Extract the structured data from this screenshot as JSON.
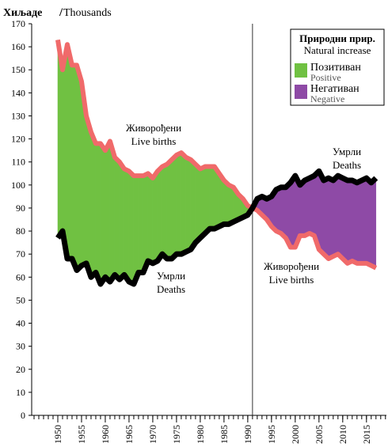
{
  "chart_data": {
    "type": "line",
    "y_label": "Хиљаде",
    "y_label_en": "Thousands",
    "x": [
      1950,
      1951,
      1952,
      1953,
      1954,
      1955,
      1956,
      1957,
      1958,
      1959,
      1960,
      1961,
      1962,
      1963,
      1964,
      1965,
      1966,
      1967,
      1968,
      1969,
      1970,
      1971,
      1972,
      1973,
      1974,
      1975,
      1976,
      1977,
      1978,
      1979,
      1980,
      1981,
      1982,
      1983,
      1984,
      1985,
      1986,
      1987,
      1988,
      1989,
      1990,
      1991,
      1992,
      1993,
      1994,
      1995,
      1996,
      1997,
      1998,
      1999,
      2000,
      2001,
      2002,
      2003,
      2004,
      2005,
      2006,
      2007,
      2008,
      2009,
      2010,
      2011,
      2012,
      2013,
      2014,
      2015,
      2016,
      2017
    ],
    "series": [
      {
        "name": "Живорођени",
        "name_en": "Live births",
        "color": "#f06a6a",
        "values": [
          163,
          150,
          161,
          152,
          152,
          145,
          130,
          123,
          118,
          118,
          115,
          119,
          112,
          110,
          107,
          106,
          104,
          104,
          104,
          105,
          103,
          106,
          108,
          109,
          111,
          113,
          114,
          112,
          111,
          109,
          107,
          108,
          108,
          108,
          105,
          102,
          100,
          99,
          96,
          94,
          91,
          90,
          89,
          87,
          85,
          82,
          80,
          79,
          77,
          73,
          73,
          78,
          78,
          79,
          78,
          72,
          70,
          68,
          69,
          70,
          68,
          66,
          67,
          66,
          66,
          66,
          65,
          64
        ]
      },
      {
        "name": "Умрли",
        "name_en": "Deaths",
        "color": "#000000",
        "values": [
          77,
          80,
          68,
          68,
          63,
          65,
          66,
          60,
          62,
          57,
          60,
          58,
          61,
          59,
          61,
          58,
          57,
          62,
          62,
          67,
          66,
          67,
          70,
          68,
          68,
          70,
          70,
          71,
          72,
          75,
          77,
          79,
          81,
          81,
          82,
          83,
          83,
          84,
          85,
          86,
          87,
          90,
          94,
          95,
          94,
          95,
          98,
          99,
          99,
          101,
          104,
          100,
          102,
          103,
          104,
          106,
          102,
          103,
          102,
          104,
          103,
          102,
          102,
          101,
          102,
          103,
          101,
          103
        ]
      }
    ],
    "annotations": [
      {
        "text": "Умрли",
        "text_en": "Deaths"
      },
      {
        "text": "Живорођени",
        "text_en": "Live births"
      }
    ],
    "legend": {
      "title": "Природни прир.",
      "title_en": "Natural increase",
      "entries": [
        {
          "name": "Позитиван",
          "name_en": "Positive",
          "color": "#70c142"
        },
        {
          "name": "Негативан",
          "name_en": "Negative",
          "color": "#8e4aa6"
        }
      ],
      "position": "upper right"
    },
    "vline": 1991,
    "xlim": [
      1944.5,
      2019.2
    ],
    "xticks": [
      1950,
      1955,
      1960,
      1965,
      1970,
      1975,
      1980,
      1985,
      1990,
      1995,
      2000,
      2005,
      2010,
      2015
    ],
    "xminor_step": 1,
    "ylim": [
      0,
      170
    ],
    "yticks": [
      0,
      10,
      20,
      30,
      40,
      50,
      60,
      70,
      80,
      90,
      100,
      110,
      120,
      130,
      140,
      150,
      160,
      170
    ]
  }
}
